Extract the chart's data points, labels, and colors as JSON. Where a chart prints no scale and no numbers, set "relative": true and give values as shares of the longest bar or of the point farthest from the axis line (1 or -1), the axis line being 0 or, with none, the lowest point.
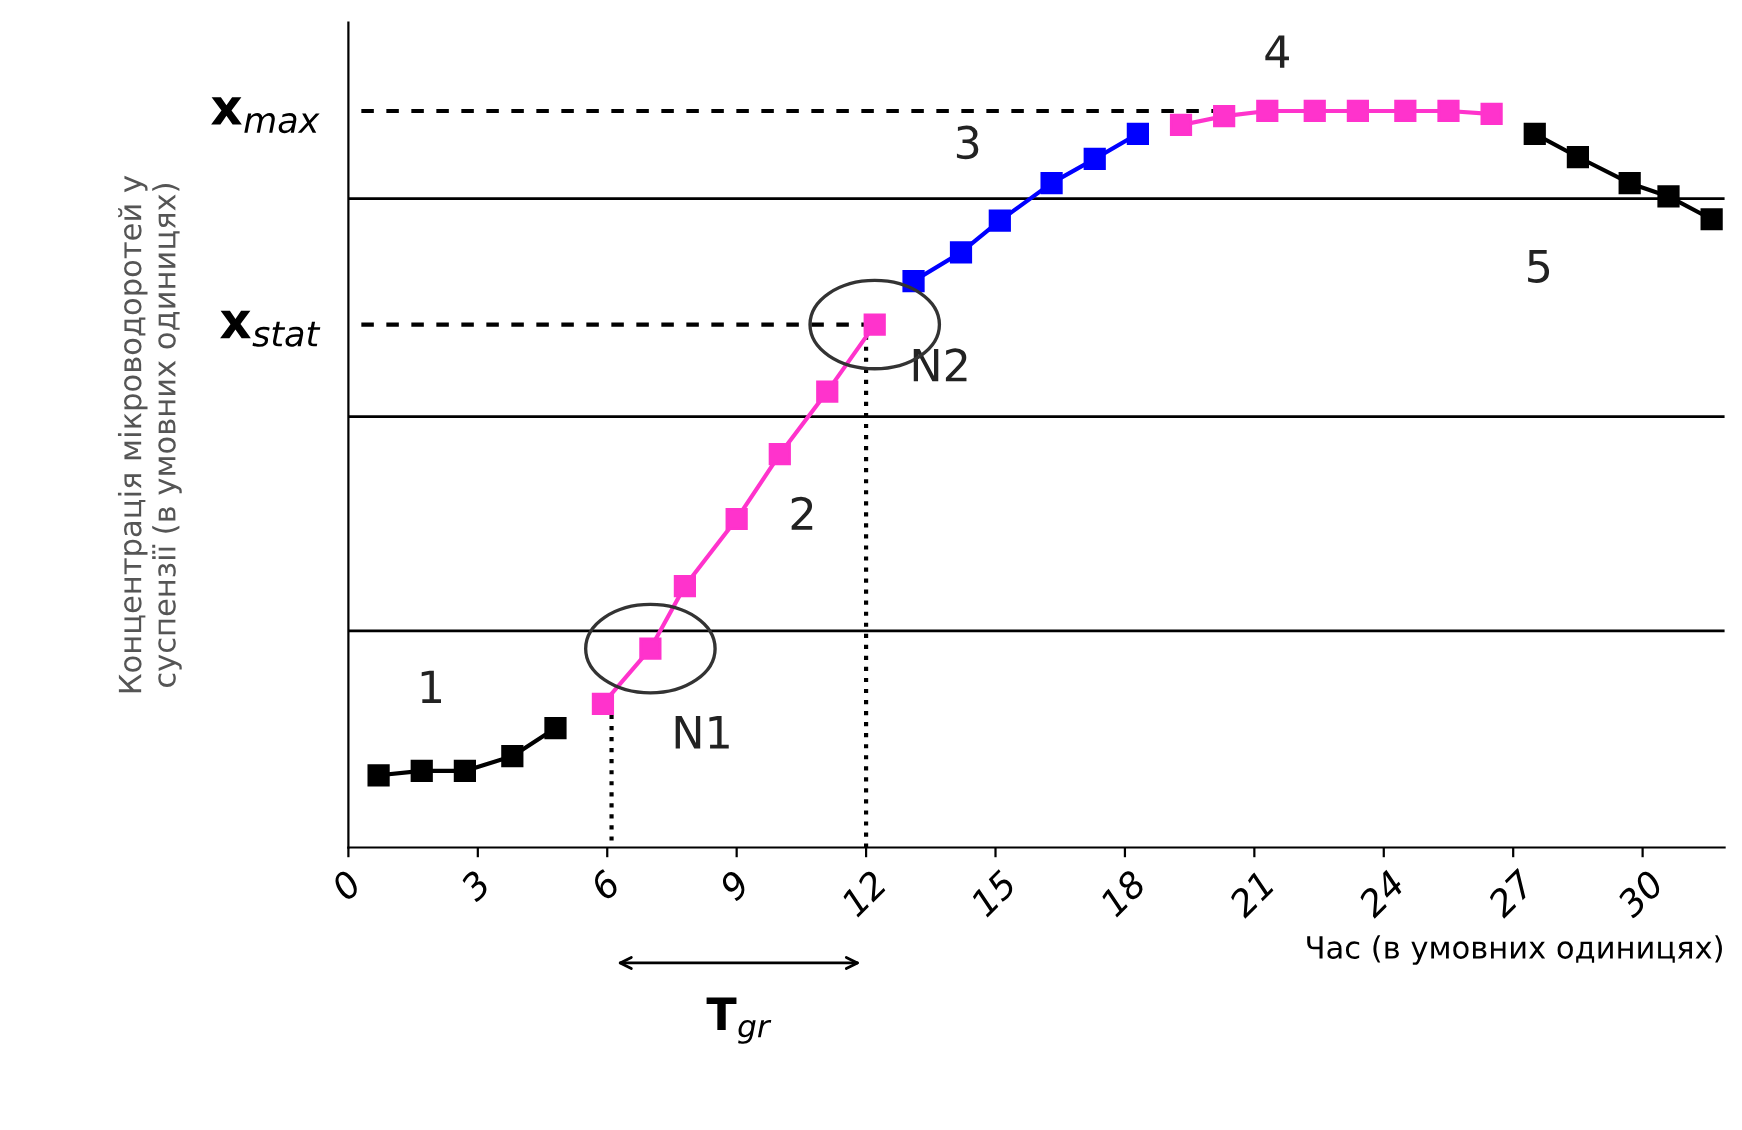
{
  "chart_data": {
    "type": "line",
    "relative": true,
    "xlabel": "Час (в умовних одиницях)",
    "ylabel": "Концентрація мікроводоротей у\nсуспензії (в умовних одиницях)",
    "xlim": [
      0,
      31.9
    ],
    "xticks": [
      0,
      3,
      6,
      9,
      12,
      15,
      18,
      21,
      24,
      27,
      30
    ],
    "marker": "square",
    "line_style": "solid",
    "grid": false,
    "series": [
      {
        "color": "#000000",
        "x": [
          0.7,
          1.7,
          2.7,
          3.8,
          4.8
        ],
        "values": [
          0.098,
          0.104,
          0.104,
          0.124,
          0.162
        ]
      },
      {
        "color": "#ff33cc",
        "x": [
          5.9,
          7.0,
          7.8,
          9.0,
          10.0,
          11.1,
          12.2
        ],
        "values": [
          0.195,
          0.27,
          0.355,
          0.446,
          0.534,
          0.619,
          0.71
        ]
      },
      {
        "color": "#0000ff",
        "x": [
          13.1,
          14.2,
          15.1,
          16.3,
          17.3,
          18.3
        ],
        "values": [
          0.769,
          0.808,
          0.851,
          0.902,
          0.935,
          0.969
        ]
      },
      {
        "color": "#ff33cc",
        "x": [
          19.3,
          20.3,
          21.3,
          22.4,
          23.4,
          24.5,
          25.5,
          26.5
        ],
        "values": [
          0.981,
          0.993,
          1,
          1,
          1,
          1,
          1,
          0.996
        ]
      },
      {
        "color": "#000000",
        "x": [
          27.5,
          28.5,
          29.7,
          30.6,
          31.6
        ],
        "values": [
          0.969,
          0.9375,
          0.902,
          0.884,
          0.853
        ]
      },
      {
        "color": "#000000",
        "line_style": "dashed",
        "marker": "none",
        "x": [
          0.3,
          20.3
        ],
        "values": [
          1,
          1
        ]
      },
      {
        "color": "#000000",
        "line_style": "dashed",
        "marker": "none",
        "x": [
          0.3,
          12.2
        ],
        "values": [
          0.71,
          0.71
        ]
      },
      {
        "color": "#000000",
        "line_style": "dotted",
        "marker": "none",
        "x": [
          12.0,
          12.0
        ],
        "values": [
          0.71,
          0
        ]
      },
      {
        "color": "#000000",
        "line_style": "dotted",
        "marker": "none",
        "x": [
          6.1,
          6.1
        ],
        "values": [
          0.195,
          0
        ]
      }
    ],
    "ref_lines": [
      {
        "axis": "y",
        "value": 0.294,
        "color": "#000000"
      },
      {
        "axis": "y",
        "value": 0.585,
        "color": "#000000"
      },
      {
        "axis": "y",
        "value": 0.881,
        "color": "#000000"
      }
    ],
    "annotations": [
      "1",
      "2",
      "3",
      "4",
      "5",
      "N1",
      "N2",
      "x$_{max}$",
      "x$_{stat}$",
      "T$_{gr}$"
    ]
  }
}
